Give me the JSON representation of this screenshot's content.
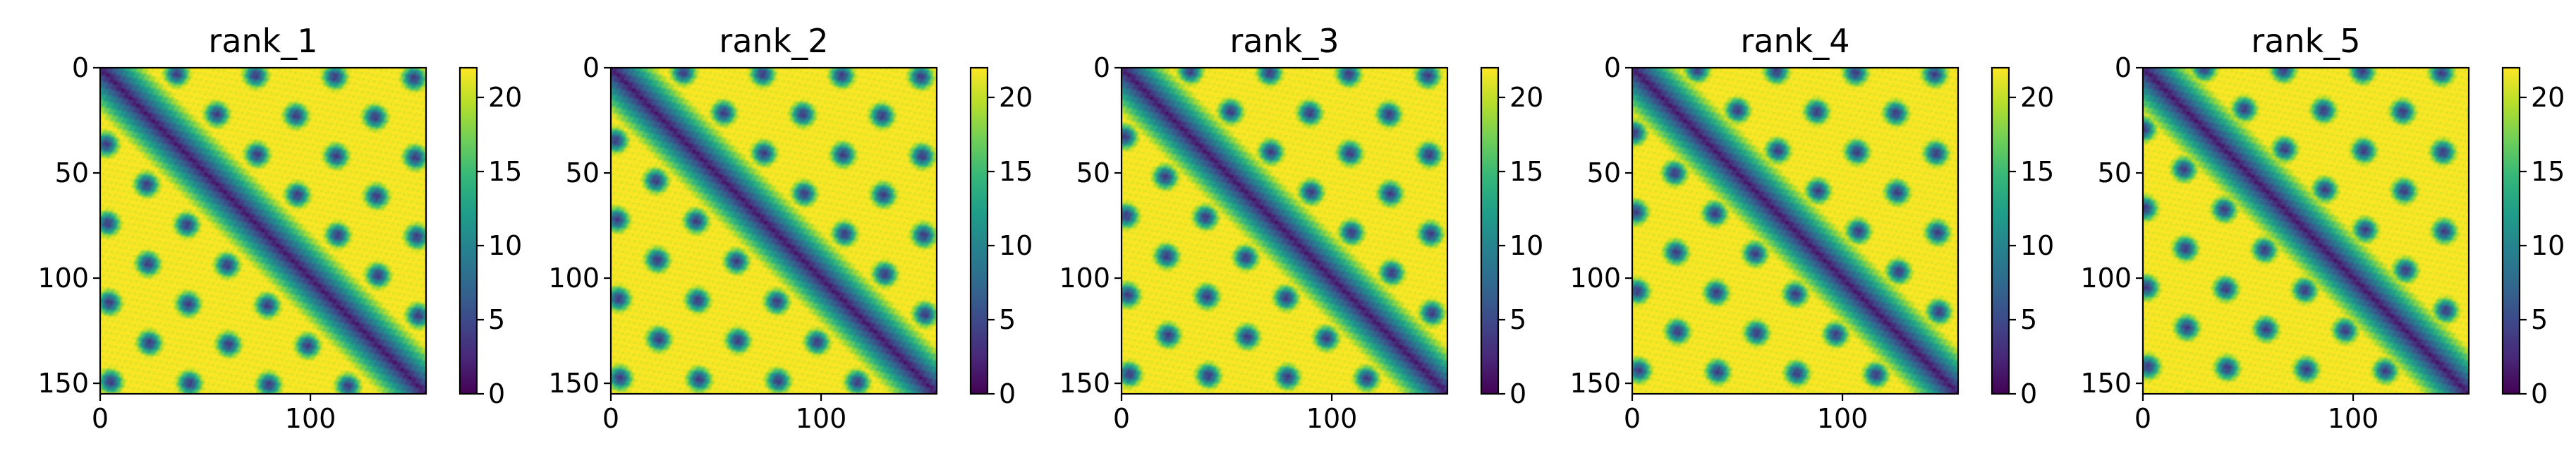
{
  "chart_data": {
    "type": "heatmap",
    "colormap": "viridis",
    "colormap_stops": [
      "#440154",
      "#482878",
      "#3e4989",
      "#31688e",
      "#26828e",
      "#1f9e89",
      "#35b779",
      "#6ece58",
      "#b5de2b",
      "#fde725"
    ],
    "matrix_size": 155,
    "x_ticks": [
      0,
      100
    ],
    "y_ticks": [
      0,
      50,
      100,
      150
    ],
    "x_tick_labels": [
      "0",
      "100"
    ],
    "y_tick_labels": [
      "0",
      "50",
      "100",
      "150"
    ],
    "colorbar_range": [
      0,
      22
    ],
    "colorbar_ticks": [
      0,
      5,
      10,
      15,
      20
    ],
    "colorbar_tick_labels": [
      "0",
      "5",
      "10",
      "15",
      "20"
    ],
    "panels": [
      {
        "title": "rank_1",
        "offset": 0.0
      },
      {
        "title": "rank_2",
        "offset": 0.4
      },
      {
        "title": "rank_3",
        "offset": 0.8
      },
      {
        "title": "rank_4",
        "offset": 1.2
      },
      {
        "title": "rank_5",
        "offset": 1.6
      }
    ]
  }
}
